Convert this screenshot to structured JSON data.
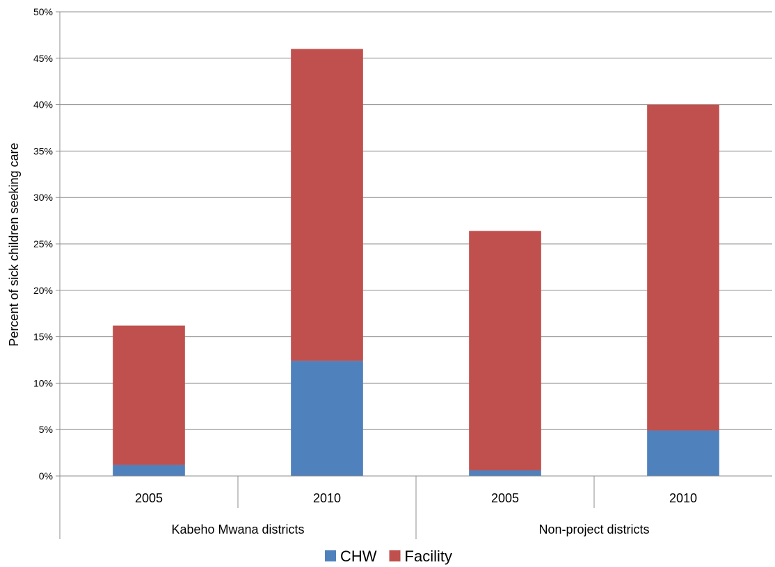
{
  "chart_data": {
    "type": "bar",
    "stacked": true,
    "title": "",
    "xlabel": "",
    "ylabel": "Percent of sick children seeking care",
    "ylim": [
      0,
      50
    ],
    "ytick_step": 5,
    "ytick_suffix": "%",
    "grid": true,
    "legend_position": "bottom",
    "categories": [
      "2005",
      "2010",
      "2005",
      "2010"
    ],
    "groups": [
      {
        "label": "Kabeho Mwana districts",
        "categories": [
          0,
          1
        ]
      },
      {
        "label": "Non-project districts",
        "categories": [
          2,
          3
        ]
      }
    ],
    "series": [
      {
        "name": "CHW",
        "color": "#4f81bd",
        "values": [
          1.2,
          12.4,
          0.6,
          4.9
        ]
      },
      {
        "name": "Facility",
        "color": "#c0504d",
        "values": [
          15.0,
          33.6,
          25.8,
          35.1
        ]
      }
    ]
  }
}
